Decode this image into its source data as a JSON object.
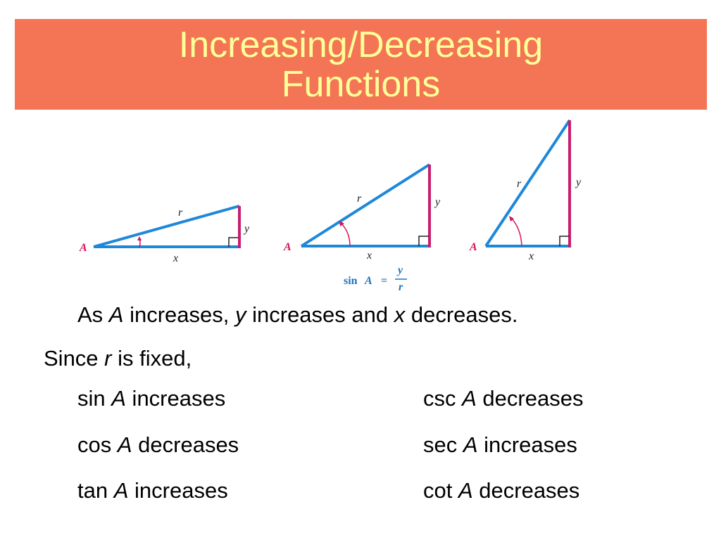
{
  "title": {
    "line1": "Increasing/Decreasing",
    "line2": "Functions"
  },
  "figure": {
    "angle_label": "A",
    "hyp_label": "r",
    "opp_label": "y",
    "adj_label": "x",
    "formula": {
      "fn": "sin",
      "var": "A",
      "eq": "=",
      "num": "y",
      "den": "r"
    }
  },
  "body": {
    "line1": {
      "p1": "As ",
      "v1": "A",
      "p2": " increases, ",
      "v2": "y",
      "p3": " increases and ",
      "v3": "x",
      "p4": " decreases."
    },
    "line2": {
      "p1": "Since ",
      "v1": "r",
      "p2": " is fixed,"
    },
    "rows": [
      {
        "left_fn": "sin ",
        "left_var": "A",
        "left_trend": " increases",
        "right_fn": "csc ",
        "right_var": "A",
        "right_trend": " decreases"
      },
      {
        "left_fn": "cos ",
        "left_var": "A",
        "left_trend": " decreases",
        "right_fn": "sec ",
        "right_var": "A",
        "right_trend": " increases"
      },
      {
        "left_fn": "tan ",
        "left_var": "A",
        "left_trend": " increases",
        "right_fn": "cot ",
        "right_var": "A",
        "right_trend": " decreases"
      }
    ]
  },
  "colors": {
    "title_band": "#f37555",
    "title_text": "#ffff99",
    "triangle_blue": "#1e88d8",
    "side_magenta": "#c81e6e"
  }
}
